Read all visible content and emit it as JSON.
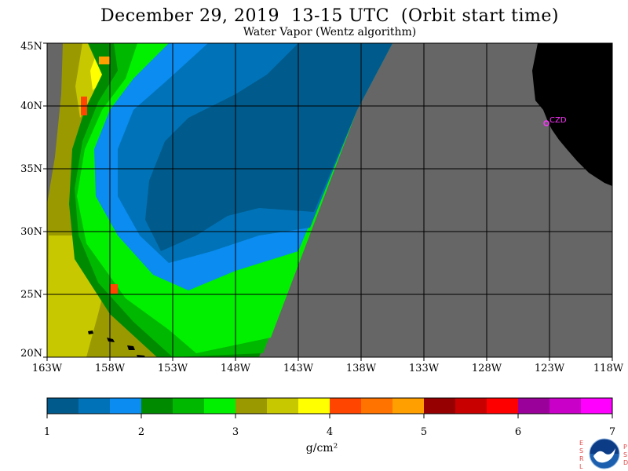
{
  "title": "December 29, 2019  13-15 UTC  (Orbit start time)",
  "subtitle": "Water Vapor (Wentz algorithm)",
  "map": {
    "lat_labels": [
      "45N",
      "40N",
      "35N",
      "30N",
      "25N",
      "20N"
    ],
    "lon_labels": [
      "163W",
      "158W",
      "153W",
      "148W",
      "143W",
      "138W",
      "133W",
      "128W",
      "123W",
      "118W"
    ],
    "station_label": "CZD",
    "colors": {
      "no_data": "#666666",
      "land": "#000000",
      "station": "#ff33ff",
      "grid": "#000000"
    }
  },
  "colorbar": {
    "tick_labels": [
      "1",
      "2",
      "3",
      "4",
      "5",
      "6",
      "7"
    ],
    "colors": [
      "#005b8c",
      "#0073b8",
      "#0a8cf0",
      "#008a00",
      "#00b800",
      "#00f000",
      "#9a9a00",
      "#c8c800",
      "#ffff00",
      "#ff4500",
      "#ff7300",
      "#ff9f00",
      "#960000",
      "#c80000",
      "#ff0000",
      "#9a009a",
      "#c800c8",
      "#ff00ff"
    ],
    "units": "g/cm²"
  },
  "logo": {
    "left_letters": "ESRL",
    "right_letters": "PSD",
    "name": "NOAA",
    "icon": "noaa-logo-icon"
  }
}
